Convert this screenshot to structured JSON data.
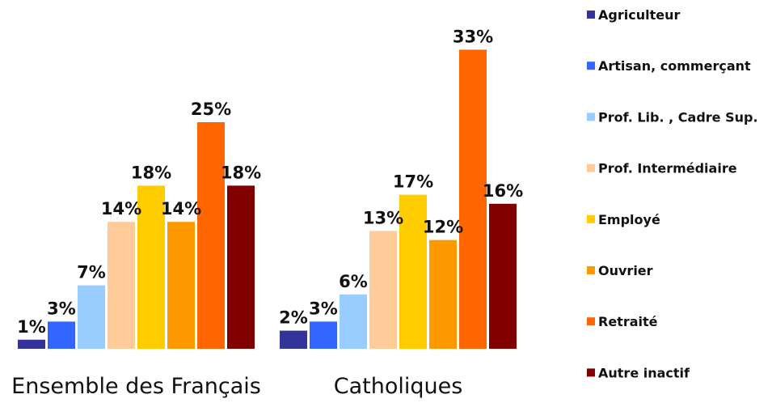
{
  "chart_data": {
    "type": "bar",
    "categories": [
      "Ensemble des Français",
      "Catholiques"
    ],
    "series": [
      {
        "name": "Agriculteur",
        "color": "#333399",
        "values": [
          1,
          2
        ],
        "labels": [
          "1%",
          "2%"
        ]
      },
      {
        "name": "Artisan, commerçant",
        "color": "#3366ff",
        "values": [
          3,
          3
        ],
        "labels": [
          "3%",
          "3%"
        ]
      },
      {
        "name": "Prof. Lib. , Cadre Sup.",
        "color": "#99ccff",
        "values": [
          7,
          6
        ],
        "labels": [
          "7%",
          "6%"
        ]
      },
      {
        "name": "Prof. Intermédiaire",
        "color": "#ffcc99",
        "values": [
          14,
          13
        ],
        "labels": [
          "14%",
          "13%"
        ]
      },
      {
        "name": "Employé",
        "color": "#ffcc00",
        "values": [
          18,
          17
        ],
        "labels": [
          "18%",
          "17%"
        ]
      },
      {
        "name": "Ouvrier",
        "color": "#ff9900",
        "values": [
          14,
          12
        ],
        "labels": [
          "14%",
          "12%"
        ]
      },
      {
        "name": "Retraité",
        "color": "#ff6600",
        "values": [
          25,
          33
        ],
        "labels": [
          "25%",
          "33%"
        ]
      },
      {
        "name": "Autre inactif",
        "color": "#800000",
        "values": [
          18,
          16
        ],
        "labels": [
          "18%",
          "16%"
        ]
      }
    ],
    "ylim": [
      0,
      33
    ],
    "grid": false,
    "legend": "right"
  }
}
